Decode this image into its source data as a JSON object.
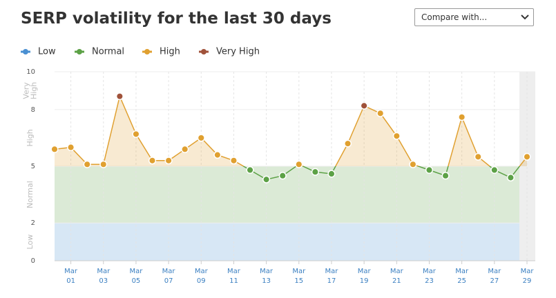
{
  "title": "SERP volatility for the last 30 days",
  "compare": "Compare with...",
  "chart_data": {
    "type": "line",
    "bands": [
      {
        "name": "Low",
        "color": "#4a90d2"
      },
      {
        "name": "Normal",
        "color": "#5ca146"
      },
      {
        "name": "High",
        "color": "#e0a030"
      },
      {
        "name": "Very High",
        "color": "#a0523a"
      }
    ],
    "categories": [
      null,
      "Mar 01",
      null,
      "Mar 03",
      null,
      "Mar 05",
      null,
      "Mar 07",
      null,
      "Mar 09",
      null,
      "Mar 11",
      null,
      "Mar 13",
      null,
      "Mar 15",
      null,
      "Mar 17",
      null,
      "Mar 19",
      null,
      "Mar 21",
      null,
      "Mar 23",
      null,
      "Mar 25",
      null,
      "Mar 27",
      null,
      "Mar 29"
    ],
    "values": [
      5.9,
      6.0,
      5.1,
      5.1,
      8.7,
      6.7,
      5.3,
      5.3,
      5.9,
      6.5,
      5.6,
      5.3,
      4.8,
      4.3,
      4.5,
      5.1,
      4.7,
      4.6,
      6.2,
      8.2,
      7.8,
      6.6,
      5.1,
      4.8,
      4.5,
      7.6,
      5.5,
      4.8,
      4.4,
      5.5
    ],
    "ylim": [
      0,
      10
    ],
    "yticks": [
      0,
      2,
      5,
      8,
      10
    ],
    "grid": true
  }
}
